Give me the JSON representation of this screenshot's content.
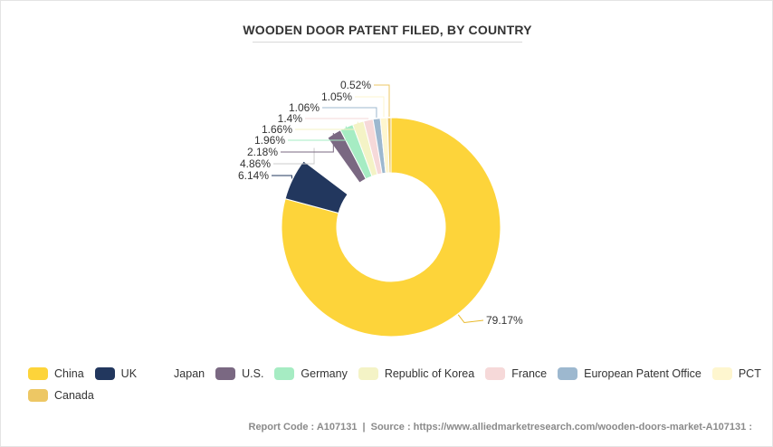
{
  "chart_data": {
    "type": "pie",
    "title": "WOODEN DOOR PATENT FILED, BY COUNTRY",
    "categories": [
      "China",
      "UK",
      "Japan",
      "U.S.",
      "Germany",
      "Republic of Korea",
      "France",
      "European Patent Office",
      "PCT",
      "Canada"
    ],
    "values": [
      79.17,
      6.14,
      4.86,
      2.18,
      1.96,
      1.66,
      1.4,
      1.06,
      1.05,
      0.52
    ],
    "labels": [
      "79.17%",
      "6.14%",
      "4.86%",
      "2.18%",
      "1.96%",
      "1.66%",
      "1.4%",
      "1.06%",
      "1.05%",
      "0.52%"
    ],
    "colors": [
      "#FDD43A",
      "#22375E",
      "#FFFFFF",
      "#7A6882",
      "#A6ECC3",
      "#F4F3C6",
      "#F6D9D9",
      "#9DB8CF",
      "#FEF6CF",
      "#EDC764"
    ],
    "donut": true,
    "legend_position": "bottom"
  },
  "footer": {
    "report_code": "Report Code : A107131",
    "source": "Source : https://www.alliedmarketresearch.com/wooden-doors-market-A107131 :"
  }
}
